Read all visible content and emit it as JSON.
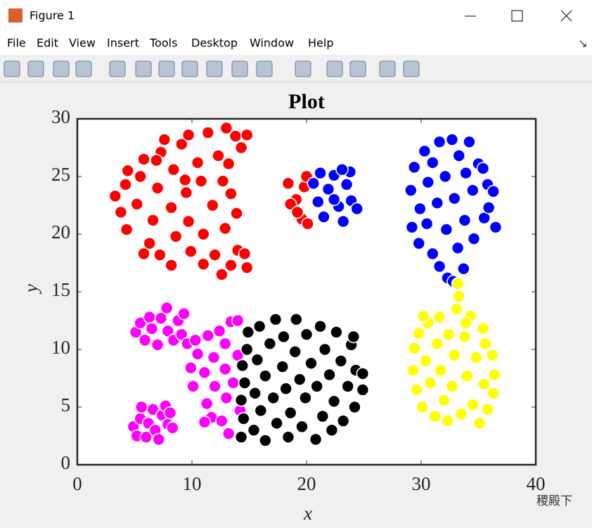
{
  "window": {
    "title": "Figure 1",
    "menu": [
      "File",
      "Edit",
      "View",
      "Insert",
      "Tools",
      "Desktop",
      "Window",
      "Help"
    ],
    "watermark": "稷殿下"
  },
  "chart_data": {
    "type": "scatter",
    "title": "Plot",
    "xlabel": "x",
    "ylabel": "y",
    "xlim": [
      0,
      40
    ],
    "ylim": [
      0,
      30
    ],
    "xticks": [
      0,
      10,
      20,
      30,
      40
    ],
    "yticks": [
      0,
      5,
      10,
      15,
      20,
      25,
      30
    ],
    "grid": false,
    "series": [
      {
        "color": "#ff0000",
        "x": [
          3.3,
          4.2,
          4.4,
          3.8,
          4.3,
          5.2,
          5.5,
          5.8,
          6.3,
          5.8,
          6.6,
          7,
          7.3,
          7.6,
          7.2,
          8.2,
          8.4,
          8.6,
          8.2,
          9.1,
          9.5,
          9.7,
          9.9,
          9.7,
          10.5,
          10.8,
          11,
          11,
          11.4,
          11.8,
          12,
          12.3,
          12.6,
          13,
          12.9,
          13.4,
          13.4,
          14,
          13.8,
          14.8,
          14.3,
          14.8,
          14.6,
          13.9,
          12.7,
          13.2,
          9.4,
          6.9,
          18.4,
          19.1,
          19.6,
          19.8,
          20,
          18.6,
          19.2,
          20.1
        ],
        "y": [
          23.3,
          24.3,
          25.5,
          21.9,
          20.4,
          22.6,
          25,
          26.5,
          19.2,
          18.3,
          21.2,
          24,
          27.1,
          28.2,
          18.2,
          22.3,
          25.6,
          19.8,
          17.3,
          27.8,
          23.6,
          21.1,
          18.5,
          28.6,
          26.2,
          24.6,
          20,
          17.4,
          28.8,
          22.5,
          18.2,
          26.8,
          16.5,
          29.2,
          20.5,
          23.5,
          17.3,
          18.6,
          28.5,
          28.6,
          27.5,
          17.1,
          18.3,
          21.8,
          24.6,
          26.1,
          24.7,
          26.4,
          24.4,
          23,
          21.3,
          24.1,
          25,
          22.6,
          21.9,
          20.9
        ]
      },
      {
        "color": "#0000ff",
        "x": [
          20.6,
          21,
          21.5,
          21.9,
          22.4,
          22.8,
          23.2,
          23.5,
          23.9,
          23.8,
          24.4,
          22.4,
          21.2,
          23.1,
          29.1,
          29.4,
          29.2,
          29.9,
          29.8,
          30.3,
          30.6,
          30.5,
          31,
          31,
          31.4,
          31.6,
          31.6,
          32.1,
          32.2,
          32.3,
          32.7,
          32.9,
          33.2,
          33.3,
          33.8,
          33.9,
          33.7,
          34.2,
          34.5,
          34.6,
          35,
          35.5,
          35.8,
          35.9,
          36.3,
          36.5,
          35.4,
          32.8
        ],
        "y": [
          24.4,
          22.8,
          21.5,
          23.9,
          25.1,
          22.4,
          21.1,
          24.3,
          22.9,
          25.4,
          22.2,
          23,
          25.3,
          25.6,
          23.8,
          25.8,
          20.6,
          22.2,
          19.2,
          27.2,
          24.5,
          20.9,
          18.3,
          26.2,
          22.7,
          28,
          17.2,
          25,
          20.4,
          16.2,
          28.2,
          23.1,
          18.8,
          26.8,
          21.2,
          25.3,
          17,
          28,
          23.8,
          19.6,
          26.1,
          21.4,
          24.3,
          22.3,
          23.7,
          20.6,
          25.7,
          15.9
        ]
      },
      {
        "color": "#ff00ff",
        "x": [
          5.1,
          5.5,
          5.9,
          6.3,
          6.5,
          7,
          7.3,
          7.8,
          7.9,
          8.4,
          8.8,
          9.3,
          9.1,
          9.6,
          10.3,
          4.9,
          5.2,
          5.5,
          6,
          6.2,
          6.6,
          6.8,
          7.1,
          7.4,
          7.7,
          7.9,
          8.3,
          8.1,
          5.6,
          9.9,
          10.1,
          10.5,
          11.1,
          11.3,
          11.4,
          11.9,
          11.7,
          12,
          12.4,
          12.6,
          12.9,
          12.9,
          13,
          13.4,
          13.6,
          13.2,
          14,
          14.2,
          14,
          11.1
        ],
        "y": [
          11.5,
          12.3,
          10.8,
          12.8,
          11.8,
          10.4,
          12.7,
          13.6,
          11.6,
          10.8,
          12.5,
          13.1,
          11.3,
          10.5,
          10.8,
          3.3,
          2.5,
          4,
          2.4,
          3.6,
          4.8,
          3,
          2.2,
          4.3,
          5.1,
          3.5,
          3.2,
          4.5,
          5,
          8.4,
          6.8,
          9.6,
          8,
          5.3,
          11.2,
          9.3,
          4.1,
          6.8,
          11.6,
          3.8,
          8.3,
          10.5,
          5.8,
          12.4,
          7.1,
          2.7,
          9.5,
          4.7,
          12.5,
          3.7
        ]
      },
      {
        "color": "#000000",
        "x": [
          14.3,
          14.5,
          14.3,
          14.6,
          14.4,
          14.8,
          14.9,
          15.4,
          15.5,
          15.7,
          15.9,
          16,
          16.4,
          16.4,
          16.8,
          17.1,
          17.3,
          17.4,
          17.9,
          18,
          18.2,
          18.4,
          18.6,
          19,
          19.1,
          19.4,
          19.6,
          19.9,
          20,
          20.4,
          20.8,
          20.9,
          21.2,
          21.4,
          21.6,
          22,
          22.2,
          22.4,
          22.6,
          23,
          23.2,
          23.6,
          23.9,
          24.2,
          24.3,
          24.9,
          24.9,
          24.1
        ],
        "y": [
          2.4,
          4,
          5.6,
          7.1,
          8.6,
          10,
          11.5,
          3,
          6.2,
          9.1,
          12,
          4.7,
          7.7,
          2.1,
          10.5,
          5.8,
          12.6,
          3.6,
          8.5,
          11.1,
          6.6,
          2.4,
          4.5,
          9.8,
          12.6,
          7.4,
          3.3,
          5.8,
          11.3,
          8.8,
          2.2,
          6.8,
          12,
          4.2,
          10,
          7.8,
          3,
          5.5,
          11.5,
          9,
          3.8,
          6.8,
          10.4,
          5,
          8.2,
          7.9,
          6.5,
          11.1
        ]
      },
      {
        "color": "#ffff00",
        "x": [
          29.3,
          29.4,
          29.6,
          29.8,
          30.1,
          30.4,
          30.6,
          30.8,
          31.2,
          31.4,
          31.6,
          31.7,
          32,
          32.3,
          32.4,
          32.7,
          32.9,
          33.1,
          33.2,
          33.3,
          33.5,
          33.8,
          34,
          34.3,
          34.5,
          34.8,
          35.1,
          35.4,
          35.5,
          35.8,
          36.2,
          36.4,
          36.3,
          35.6,
          30.2,
          33.9
        ],
        "y": [
          8.2,
          10.1,
          6.5,
          11.4,
          5,
          9,
          12.3,
          7.1,
          4.2,
          10.5,
          12.8,
          8.2,
          5.6,
          3.8,
          11.3,
          6.8,
          9.5,
          13.5,
          15.7,
          14.6,
          4.4,
          11.1,
          7.7,
          12.9,
          5.2,
          9.3,
          3.6,
          11.8,
          7,
          4.8,
          9.5,
          7.8,
          6.2,
          10.5,
          12.9,
          12.3
        ]
      }
    ]
  }
}
